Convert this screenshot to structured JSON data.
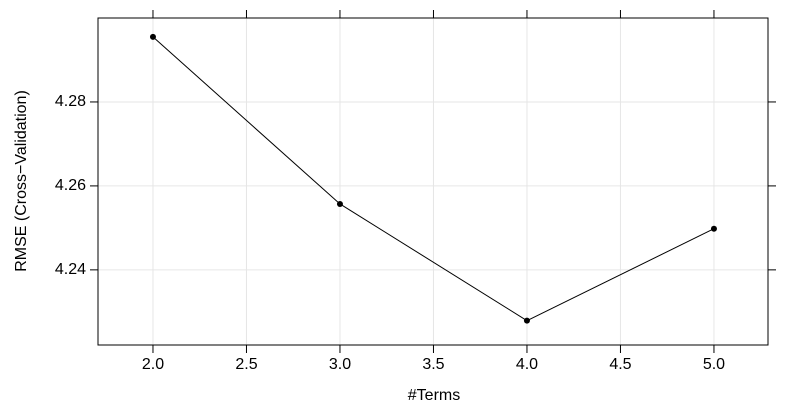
{
  "chart_data": {
    "type": "line",
    "x_label": "#Terms",
    "y_label": "RMSE (Cross−Validation)",
    "x": [
      2,
      3,
      4,
      5
    ],
    "series": [
      {
        "color": "#000000",
        "values": [
          4.2955,
          4.2557,
          4.2279,
          4.2498
        ]
      }
    ],
    "xlim": [
      1.706,
      5.289
    ],
    "ylim": [
      4.2221,
      4.3
    ],
    "xticks": [
      {
        "value": 2,
        "label": "2.0"
      },
      {
        "value": 2.5,
        "label": "2.5"
      },
      {
        "value": 3,
        "label": "3.0"
      },
      {
        "value": 3.5,
        "label": "3.5"
      },
      {
        "value": 4,
        "label": "4.0"
      },
      {
        "value": 4.5,
        "label": "4.5"
      },
      {
        "value": 5,
        "label": "5.0"
      }
    ],
    "yticks": [
      4.24,
      4.26,
      4.28
    ],
    "grid": true
  }
}
